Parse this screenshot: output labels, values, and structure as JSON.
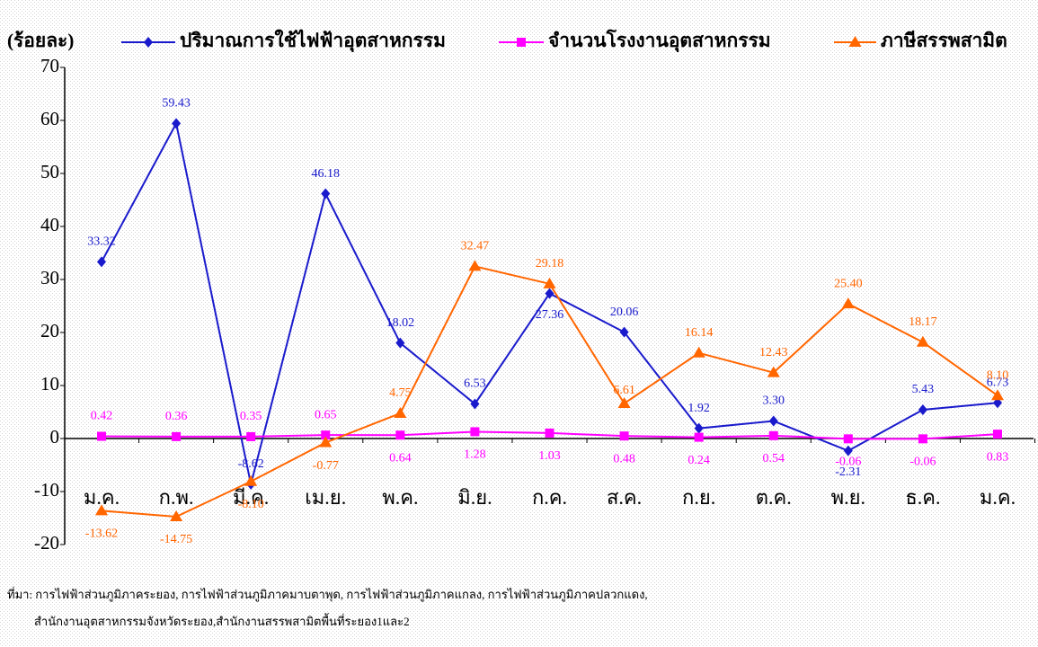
{
  "chart_data": {
    "type": "line",
    "ylabel": "(ร้อยละ)",
    "categories": [
      "ม.ค.",
      "ก.พ.",
      "มี.ค.",
      "เม.ย.",
      "พ.ค.",
      "มิ.ย.",
      "ก.ค.",
      "ส.ค.",
      "ก.ย.",
      "ต.ค.",
      "พ.ย.",
      "ธ.ค.",
      "ม.ค."
    ],
    "series": [
      {
        "name": "ปริมาณการใช้ไฟฟ้าอุตสาหกรรม",
        "color": "#1a1acc",
        "marker": "diamond",
        "values": [
          33.32,
          59.43,
          -8.62,
          46.18,
          18.02,
          6.53,
          27.36,
          20.06,
          1.92,
          3.3,
          -2.31,
          5.43,
          6.73
        ],
        "value_labels": [
          "33.32",
          "59.43",
          "-8.62",
          "46.18",
          "18.02",
          "6.53",
          "27.36",
          "20.06",
          "1.92",
          "3.30",
          "-2.31",
          "5.43",
          "6.73"
        ]
      },
      {
        "name": "จำนวนโรงงานอุตสาหกรรม",
        "color": "#ff00ff",
        "marker": "square",
        "values": [
          0.42,
          0.36,
          0.35,
          0.65,
          0.64,
          1.28,
          1.03,
          0.48,
          0.24,
          0.54,
          -0.06,
          -0.06,
          0.83
        ],
        "value_labels": [
          "0.42",
          "0.36",
          "0.35",
          "0.65",
          "0.64",
          "1.28",
          "1.03",
          "0.48",
          "0.24",
          "0.54",
          "-0.06",
          "-0.06",
          "0.83"
        ]
      },
      {
        "name": "ภาษีสรรพสามิต",
        "color": "#ff6600",
        "marker": "triangle",
        "values": [
          -13.62,
          -14.75,
          -8.1,
          -0.77,
          4.75,
          32.47,
          29.18,
          6.61,
          16.14,
          12.43,
          25.4,
          18.17,
          8.1
        ],
        "value_labels": [
          "-13.62",
          "-14.75",
          "-8.10",
          "-0.77",
          "4.75",
          "32.47",
          "29.18",
          "6.61",
          "16.14",
          "12.43",
          "25.40",
          "18.17",
          "8.10"
        ]
      }
    ],
    "ylim": [
      -20,
      70
    ],
    "yticks": [
      -20,
      -10,
      0,
      10,
      20,
      30,
      40,
      50,
      60,
      70
    ],
    "notes": [
      "ที่มา: การไฟฟ้าส่วนภูมิภาคระยอง, การไฟฟ้าส่วนภูมิภาคมาบตาพุด, การไฟฟ้าส่วนภูมิภาคแกลง, การไฟฟ้าส่วนภูมิภาคปลวกแดง,",
      "สำนักงานอุตสาหกรรมจังหวัดระยอง,สำนักงานสรรพสามิตพื้นที่ระยอง1และ2"
    ]
  }
}
